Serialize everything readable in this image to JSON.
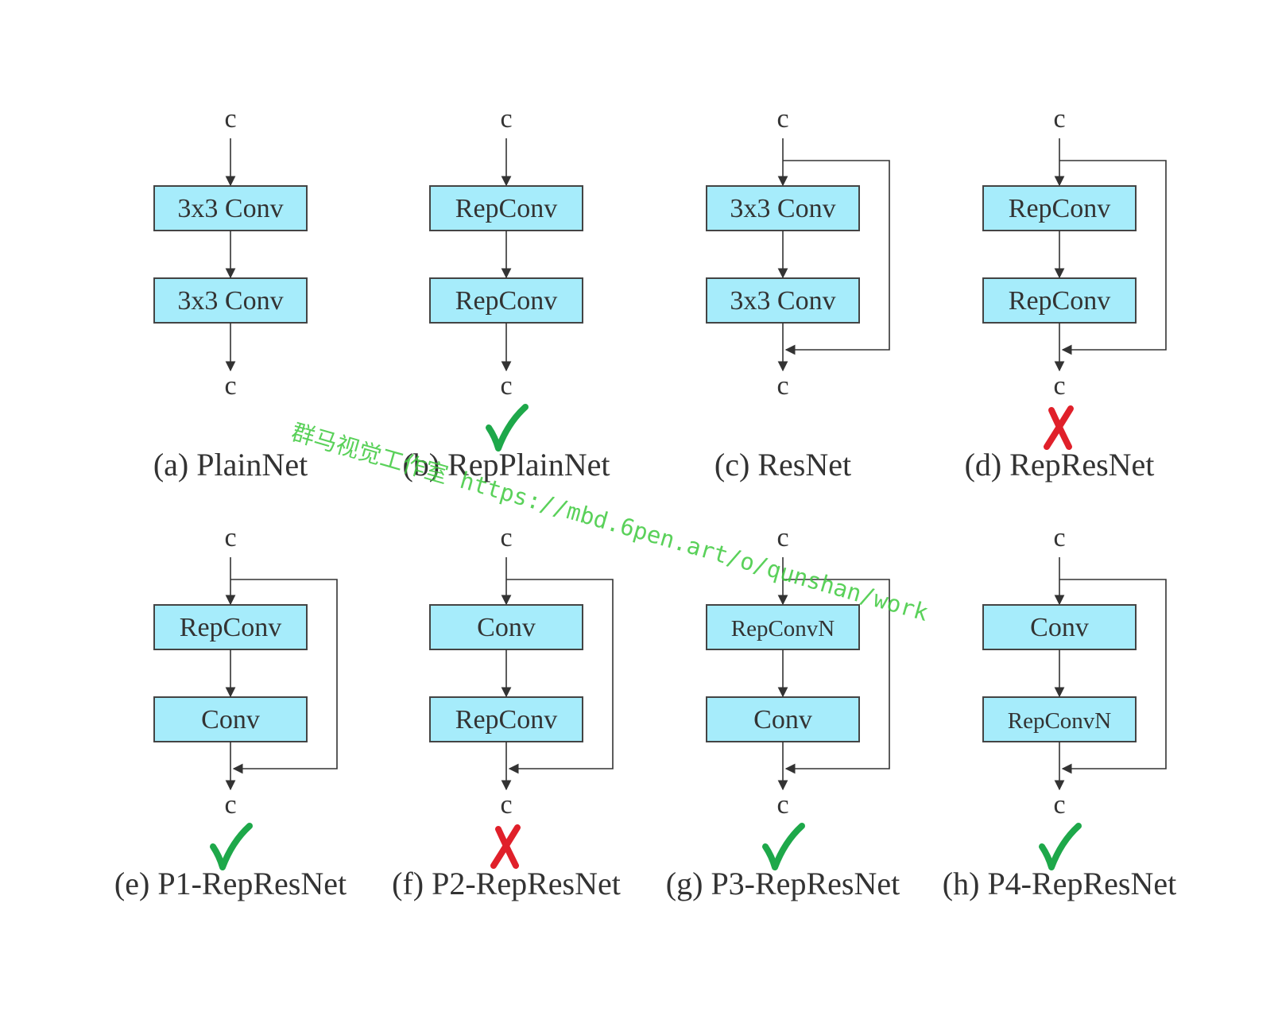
{
  "colors": {
    "block_fill": "#a6ecfb",
    "block_stroke": "#444444",
    "line": "#333333",
    "text": "#333333",
    "check": "#1ea84a",
    "cross": "#e0202a",
    "watermark": "#3ec93e"
  },
  "channel_label": "c",
  "panels": [
    {
      "id": "a",
      "label": "(a) PlainNet",
      "blocks": [
        "3x3 Conv",
        "3x3 Conv"
      ],
      "residual": false,
      "mark": null
    },
    {
      "id": "b",
      "label": "(b) RepPlainNet",
      "blocks": [
        "RepConv",
        "RepConv"
      ],
      "residual": false,
      "mark": "check"
    },
    {
      "id": "c",
      "label": "(c) ResNet",
      "blocks": [
        "3x3 Conv",
        "3x3 Conv"
      ],
      "residual": true,
      "mark": null
    },
    {
      "id": "d",
      "label": "(d) RepResNet",
      "blocks": [
        "RepConv",
        "RepConv"
      ],
      "residual": true,
      "mark": "cross"
    },
    {
      "id": "e",
      "label": "(e) P1-RepResNet",
      "blocks": [
        "RepConv",
        "Conv"
      ],
      "residual": true,
      "mark": "check"
    },
    {
      "id": "f",
      "label": "(f) P2-RepResNet",
      "blocks": [
        "Conv",
        "RepConv"
      ],
      "residual": true,
      "mark": "cross"
    },
    {
      "id": "g",
      "label": "(g) P3-RepResNet",
      "blocks": [
        "RepConvN",
        "Conv"
      ],
      "residual": true,
      "mark": "check"
    },
    {
      "id": "h",
      "label": "(h) P4-RepResNet",
      "blocks": [
        "Conv",
        "RepConvN"
      ],
      "residual": true,
      "mark": "check"
    }
  ],
  "mark_icons": {
    "check": "check-icon",
    "cross": "cross-icon"
  },
  "watermark": {
    "text": "群马视觉工作室 https://mbd.6pen.art/o/qunshan/work"
  }
}
